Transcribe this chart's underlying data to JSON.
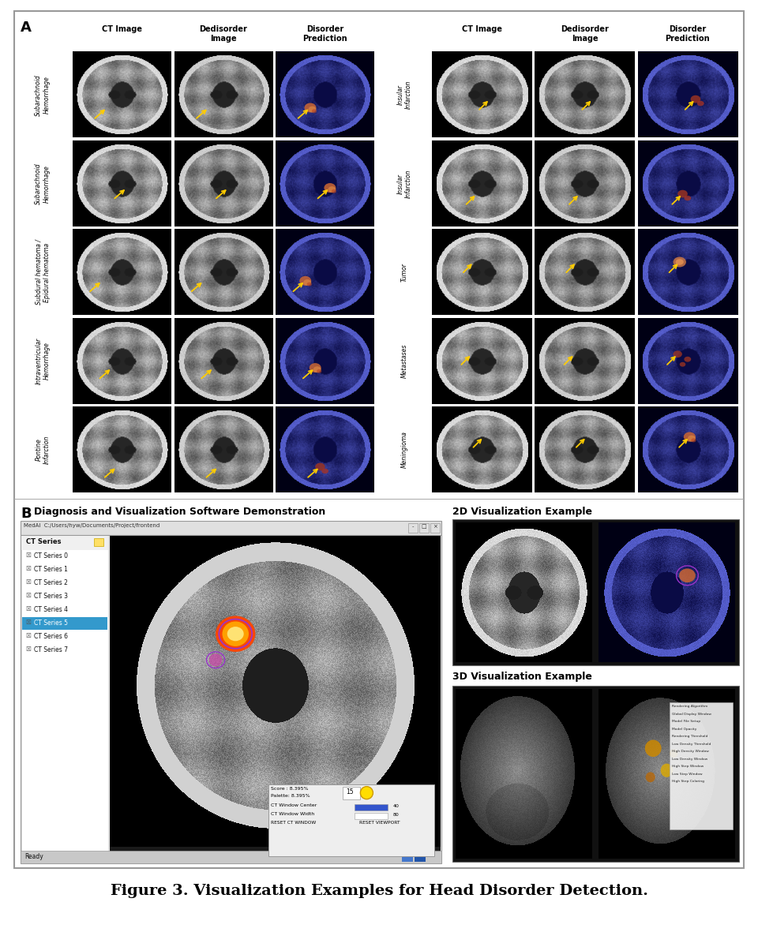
{
  "title": "Figure 3. Visualization Examples for Head Disorder Detection.",
  "panel_A_label": "A",
  "panel_B_label": "B",
  "left_col_headers": [
    "CT Image",
    "Dedisorder\nImage",
    "Disorder\nPrediction"
  ],
  "right_col_headers": [
    "CT Image",
    "Dedisorder\nImage",
    "Disorder\nPrediction"
  ],
  "left_rows": [
    "Subarachnoid\nHemorrhage",
    "Subarachnoid\nHemorrhage",
    "Subdural hematoma /\nEpidural hematoma",
    "Intraventricular\nHemorrhage",
    "Pontine\nInfarction"
  ],
  "right_rows": [
    "Insular\nInfarction",
    "Insular\nInfarction",
    "Tumor",
    "Metastases",
    "Meningioma"
  ],
  "B_left_title": "Diagnosis and Visualization Software Demonstration",
  "B_right_2d_title": "2D Visualization Example",
  "B_right_3d_title": "3D Visualization Example",
  "bg_color": "#ffffff",
  "outer_border": "#aaaaaa",
  "series_items": [
    "CT Series 0",
    "CT Series 1",
    "CT Series 2",
    "CT Series 3",
    "CT Series 4",
    "CT Series 5",
    "CT Series 6",
    "CT Series 7"
  ],
  "selected_series": 5
}
